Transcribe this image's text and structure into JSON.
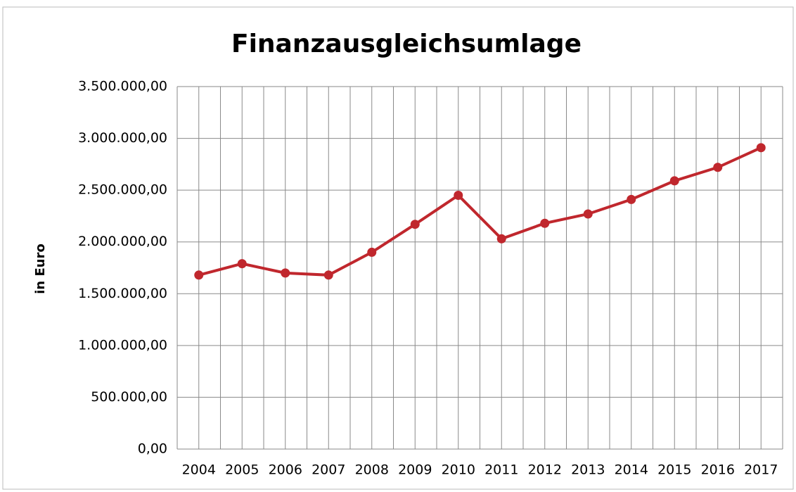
{
  "chart_data": {
    "type": "line",
    "title": "Finanzausgleichsumlage",
    "y_label": "in Euro",
    "categories": [
      "2004",
      "2005",
      "2006",
      "2007",
      "2008",
      "2009",
      "2010",
      "2011",
      "2012",
      "2013",
      "2014",
      "2015",
      "2016",
      "2017"
    ],
    "series": [
      {
        "name": "Finanzausgleichsumlage",
        "color": "#c0272d",
        "values": [
          1680000,
          1790000,
          1700000,
          1680000,
          1900000,
          2170000,
          2450000,
          2030000,
          2180000,
          2270000,
          2410000,
          2590000,
          2720000,
          2910000
        ]
      }
    ],
    "ylim": [
      0,
      3500000
    ],
    "yticks": [
      {
        "value": 0,
        "label": "0,00"
      },
      {
        "value": 500000,
        "label": "500.000,00"
      },
      {
        "value": 1000000,
        "label": "1.000.000,00"
      },
      {
        "value": 1500000,
        "label": "1.500.000,00"
      },
      {
        "value": 2000000,
        "label": "2.000.000,00"
      },
      {
        "value": 2500000,
        "label": "2.500.000,00"
      },
      {
        "value": 3000000,
        "label": "3.000.000,00"
      },
      {
        "value": 3500000,
        "label": "3.500.000,00"
      }
    ],
    "grid": true
  }
}
